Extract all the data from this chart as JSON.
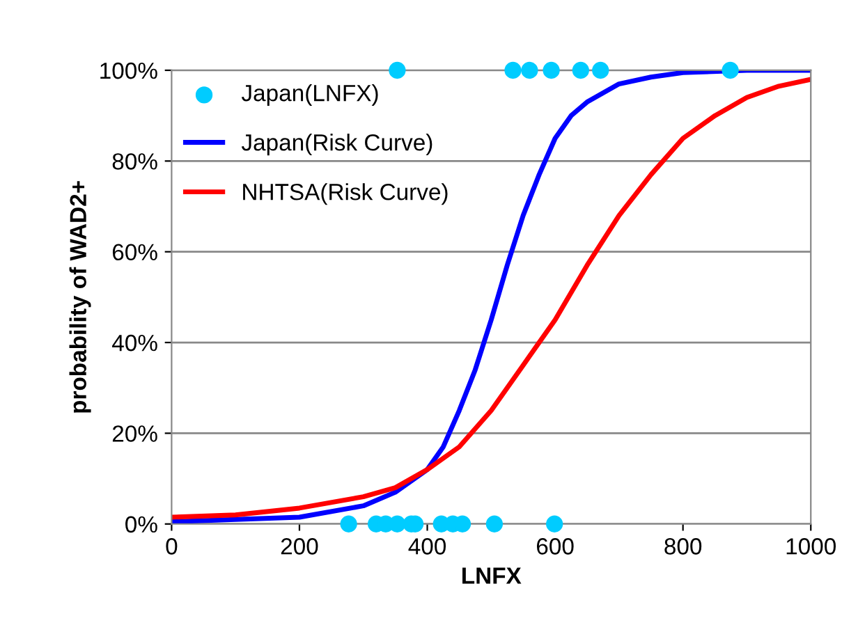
{
  "chart_data": {
    "type": "line",
    "xlabel": "LNFX",
    "ylabel": "probability of WAD2+",
    "xlim": [
      0,
      1000
    ],
    "xticks": [
      0,
      200,
      400,
      600,
      800,
      1000
    ],
    "ylim": [
      0,
      100
    ],
    "yticks": [
      {
        "value": 0,
        "label": "0%"
      },
      {
        "value": 20,
        "label": "20%"
      },
      {
        "value": 40,
        "label": "40%"
      },
      {
        "value": 60,
        "label": "60%"
      },
      {
        "value": 80,
        "label": "80%"
      },
      {
        "value": 100,
        "label": "100%"
      }
    ],
    "grid": "y",
    "legend": "top left",
    "series": [
      {
        "name": "Japan(LNFX)",
        "type": "scatter",
        "marker": "circle",
        "color": "#00ccff",
        "x": [
          353,
          534,
          560,
          594,
          640,
          671,
          874,
          277,
          320,
          335,
          353,
          375,
          381,
          422,
          440,
          455,
          505,
          599
        ],
        "values": [
          100,
          100,
          100,
          100,
          100,
          100,
          100,
          0,
          0,
          0,
          0,
          0,
          0,
          0,
          0,
          0,
          0,
          0
        ]
      },
      {
        "name": "Japan(Risk Curve)",
        "color": "#0000ff",
        "x": [
          0,
          200,
          300,
          350,
          400,
          425,
          450,
          475,
          500,
          525,
          550,
          575,
          600,
          625,
          650,
          700,
          750,
          800,
          900,
          1000
        ],
        "values": [
          0.5,
          1.5,
          4,
          7,
          12,
          17,
          25,
          34,
          45,
          57,
          68,
          77,
          85,
          90,
          93,
          97,
          98.5,
          99.5,
          100,
          100
        ]
      },
      {
        "name": "NHTSA(Risk Curve)",
        "color": "#ff0000",
        "x": [
          0,
          100,
          200,
          300,
          350,
          400,
          450,
          500,
          550,
          600,
          650,
          700,
          750,
          800,
          850,
          900,
          950,
          1000
        ],
        "values": [
          1.5,
          2,
          3.5,
          6,
          8,
          12,
          17,
          25,
          35,
          45,
          57,
          68,
          77,
          85,
          90,
          94,
          96.5,
          98
        ]
      }
    ]
  }
}
